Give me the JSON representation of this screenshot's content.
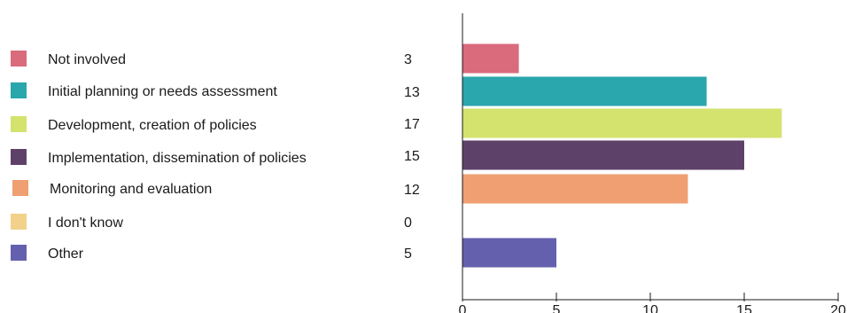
{
  "chart_data": {
    "type": "bar",
    "orientation": "horizontal",
    "categories": [
      "Not involved",
      "Initial planning or needs assessment",
      "Development, creation of policies",
      "Implementation, dissemination of policies",
      "Monitoring and evaluation",
      "I don't know",
      "Other"
    ],
    "values": [
      3,
      13,
      17,
      15,
      12,
      0,
      5
    ],
    "value_labels": [
      "3",
      "13",
      "17",
      "15",
      "12",
      "0",
      "5"
    ],
    "colors": [
      "#d96b7c",
      "#2aa6ad",
      "#d4e26e",
      "#5e4168",
      "#ef9f72",
      "#f2d28a",
      "#6560ad"
    ],
    "xlim": [
      0,
      20
    ],
    "xticks": [
      0,
      5,
      10,
      15,
      20
    ],
    "xtick_labels": [
      "0",
      "5",
      "10",
      "15",
      "20"
    ],
    "grid": false,
    "legend_placement": "left"
  }
}
